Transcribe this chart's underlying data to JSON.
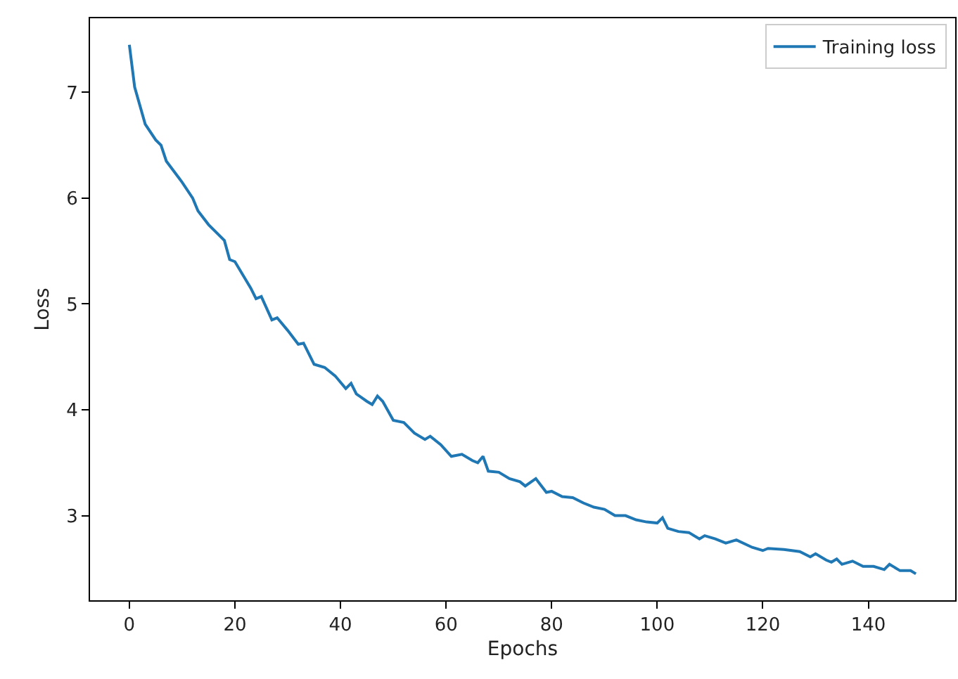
{
  "chart_data": {
    "type": "line",
    "xlabel": "Epochs",
    "ylabel": "Loss",
    "xlim": [
      -7.45,
      156.45
    ],
    "ylim": [
      2.2,
      7.7
    ],
    "xticks": [
      0,
      20,
      40,
      60,
      80,
      100,
      120,
      140
    ],
    "yticks": [
      3,
      4,
      5,
      6,
      7
    ],
    "legend": "top right",
    "marker": "none",
    "line_style": "solid",
    "series": [
      {
        "name": "Training loss",
        "color": "#1f77b4",
        "x": [
          0,
          1,
          3,
          5,
          6,
          7,
          10,
          12,
          13,
          15,
          18,
          19,
          20,
          23,
          24,
          25,
          27,
          28,
          30,
          32,
          33,
          35,
          37,
          39,
          41,
          42,
          43,
          45,
          46,
          47,
          48,
          50,
          52,
          54,
          56,
          57,
          59,
          61,
          63,
          65,
          66,
          67,
          68,
          70,
          72,
          74,
          75,
          77,
          79,
          80,
          82,
          84,
          86,
          88,
          90,
          92,
          94,
          96,
          98,
          100,
          101,
          102,
          104,
          106,
          108,
          109,
          111,
          113,
          115,
          118,
          120,
          121,
          124,
          127,
          129,
          130,
          132,
          133,
          134,
          135,
          137,
          139,
          141,
          143,
          144,
          146,
          148,
          149
        ],
        "values": [
          7.45,
          7.05,
          6.7,
          6.55,
          6.5,
          6.35,
          6.15,
          6.0,
          5.88,
          5.75,
          5.6,
          5.42,
          5.4,
          5.15,
          5.05,
          5.07,
          4.85,
          4.87,
          4.75,
          4.62,
          4.63,
          4.43,
          4.4,
          4.32,
          4.2,
          4.25,
          4.15,
          4.08,
          4.05,
          4.13,
          4.08,
          3.9,
          3.88,
          3.78,
          3.72,
          3.75,
          3.67,
          3.56,
          3.58,
          3.52,
          3.5,
          3.56,
          3.42,
          3.41,
          3.35,
          3.32,
          3.28,
          3.35,
          3.22,
          3.23,
          3.18,
          3.17,
          3.12,
          3.08,
          3.06,
          3.0,
          3.0,
          2.96,
          2.94,
          2.93,
          2.98,
          2.88,
          2.85,
          2.84,
          2.78,
          2.81,
          2.78,
          2.74,
          2.77,
          2.7,
          2.67,
          2.69,
          2.68,
          2.66,
          2.61,
          2.64,
          2.58,
          2.56,
          2.59,
          2.54,
          2.57,
          2.52,
          2.52,
          2.49,
          2.54,
          2.48,
          2.48,
          2.45
        ]
      }
    ]
  }
}
